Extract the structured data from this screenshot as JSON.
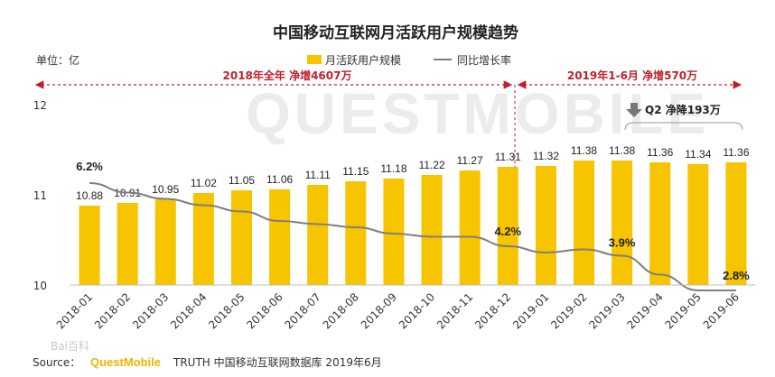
{
  "chart_data": {
    "type": "bar",
    "title": "中国移动互联网月活跃用户规模趋势",
    "unit_label": "单位：亿",
    "categories": [
      "2018-01",
      "2018-02",
      "2018-03",
      "2018-04",
      "2018-05",
      "2018-06",
      "2018-07",
      "2018-08",
      "2018-09",
      "2018-10",
      "2018-11",
      "2018-12",
      "2019-01",
      "2019-02",
      "2019-03",
      "2019-04",
      "2019-05",
      "2019-06"
    ],
    "series": [
      {
        "name": "月活跃用户规模",
        "type": "bar",
        "color": "#f7c400",
        "values": [
          10.88,
          10.91,
          10.95,
          11.02,
          11.05,
          11.06,
          11.11,
          11.15,
          11.18,
          11.22,
          11.27,
          11.31,
          11.32,
          11.38,
          11.38,
          11.36,
          11.34,
          11.36
        ],
        "labels": [
          "10.88",
          "10.91",
          "10.95",
          "11.02",
          "11.05",
          "11.06",
          "11.11",
          "11.15",
          "11.18",
          "11.22",
          "11.27",
          "11.31",
          "11.32",
          "11.38",
          "11.38",
          "11.36",
          "11.34",
          "11.36"
        ]
      },
      {
        "name": "同比增长率",
        "type": "line",
        "color": "#7f7f7f",
        "values": [
          6.2,
          5.9,
          5.7,
          5.5,
          5.3,
          5.0,
          4.9,
          4.8,
          4.6,
          4.5,
          4.5,
          4.2,
          4.0,
          4.1,
          3.9,
          3.3,
          2.8,
          2.8
        ],
        "labels": [
          "6.2%",
          "4.2%",
          "3.9%",
          "2.8%"
        ]
      }
    ],
    "ylim": [
      10,
      12
    ],
    "yticks": [
      "10",
      "11",
      "12"
    ],
    "legend_position": "top-right",
    "annotations": {
      "period_2018": "2018年全年  净增4607万",
      "period_2019": "2019年1-6月  净增570万",
      "q2": "Q2  净降193万"
    }
  },
  "source": {
    "prefix": "Source：",
    "brand": "QuestMobile",
    "text": "TRUTH 中国移动互联网数据库 2019年6月"
  },
  "watermark": {
    "text": "QUESTMOBILE",
    "baidu": "Bai百科"
  },
  "colors": {
    "bar": "#f7c400",
    "line": "#7f7f7f",
    "annotation": "#c0202c"
  }
}
